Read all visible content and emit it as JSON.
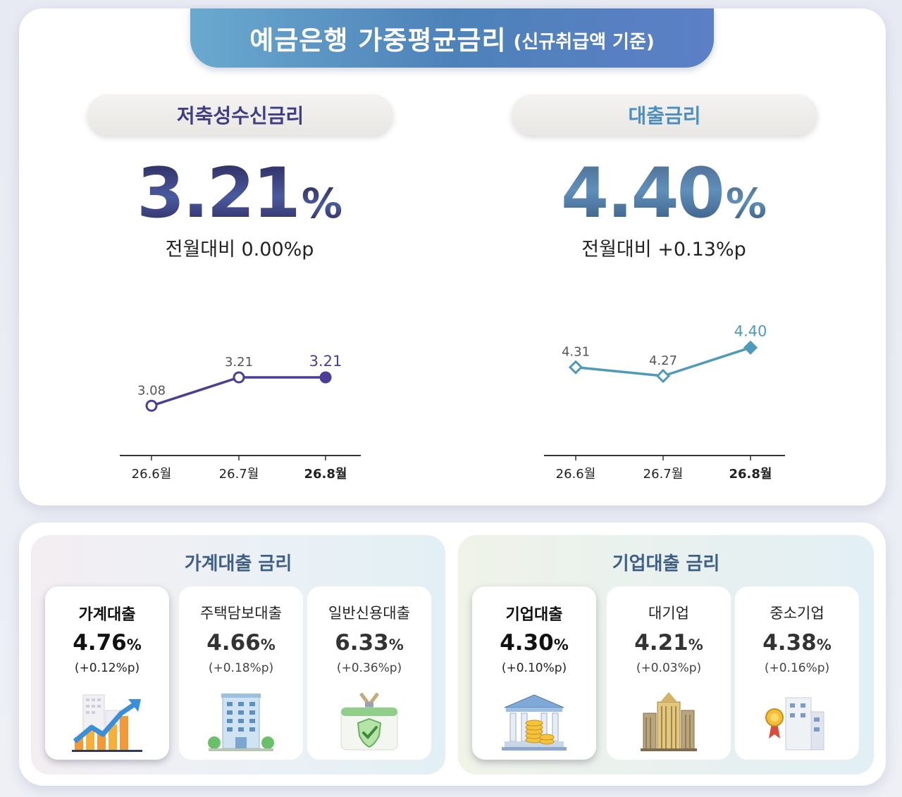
{
  "title": {
    "main": "예금은행 가중평균금리",
    "sub": "(신규취급액 기준)"
  },
  "deposit": {
    "label": "저축성수신금리",
    "rate": "3.21",
    "unit": "%",
    "change": "전월대비 0.00%p"
  },
  "loan": {
    "label": "대출금리",
    "rate": "4.40",
    "unit": "%",
    "change": "전월대비 +0.13%p"
  },
  "chart_data": [
    {
      "type": "line",
      "x": [
        "26.6월",
        "26.7월",
        "26.8월"
      ],
      "series": [
        {
          "values": [
            3.08,
            3.21,
            3.21
          ]
        }
      ],
      "value_labels": [
        "3.08",
        "3.21",
        "3.21"
      ],
      "color": "#4b3f95",
      "marker": "circle",
      "highlight_last": true
    },
    {
      "type": "line",
      "x": [
        "26.6월",
        "26.7월",
        "26.8월"
      ],
      "series": [
        {
          "values": [
            4.31,
            4.27,
            4.4
          ]
        }
      ],
      "value_labels": [
        "4.31",
        "4.27",
        "4.40"
      ],
      "color": "#4f9ab8",
      "marker": "diamond",
      "highlight_last": true
    }
  ],
  "household": {
    "title": "가계대출 금리",
    "cards": [
      {
        "name": "가계대출",
        "rate": "4.76",
        "unit": "%",
        "change": "(+0.12%p)",
        "icon": "rising-chart-icon"
      },
      {
        "name": "주택담보대출",
        "rate": "4.66",
        "unit": "%",
        "change": "(+0.18%p)",
        "icon": "apartment-building-icon"
      },
      {
        "name": "일반신용대출",
        "rate": "6.33",
        "unit": "%",
        "change": "(+0.36%p)",
        "icon": "id-card-shield-icon"
      }
    ]
  },
  "corporate": {
    "title": "기업대출 금리",
    "cards": [
      {
        "name": "기업대출",
        "rate": "4.30",
        "unit": "%",
        "change": "(+0.10%p)",
        "icon": "bank-coins-icon"
      },
      {
        "name": "대기업",
        "rate": "4.21",
        "unit": "%",
        "change": "(+0.03%p)",
        "icon": "skyscraper-icon"
      },
      {
        "name": "중소기업",
        "rate": "4.38",
        "unit": "%",
        "change": "(+0.16%p)",
        "icon": "office-medal-icon"
      }
    ]
  }
}
